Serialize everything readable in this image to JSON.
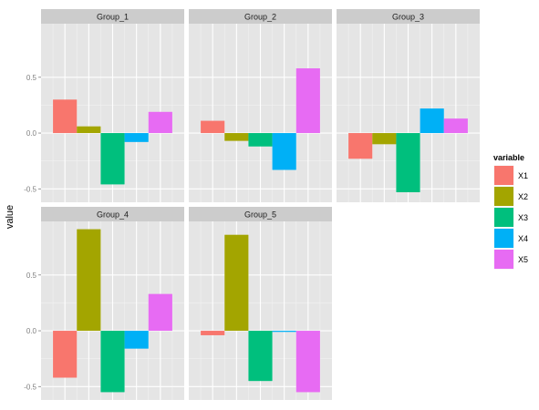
{
  "chart_data": {
    "type": "bar",
    "ylabel": "value",
    "xlabel": "",
    "ylim": [
      -0.62,
      0.98
    ],
    "y_ticks": [
      -0.5,
      0.0,
      0.5
    ],
    "y_tick_labels": [
      "-0.5",
      "0.0",
      "0.5"
    ],
    "grid": true,
    "facet_rows": [
      {
        "ylim": [
          -0.62,
          0.98
        ],
        "y_tick_labels": [
          "-0.5",
          "0.0",
          "0.5"
        ]
      },
      {
        "ylim": [
          -0.62,
          0.98
        ],
        "y_tick_labels": [
          "-0.5",
          "0.0",
          "0.5"
        ]
      }
    ],
    "categories": [
      "X1",
      "X2",
      "X3",
      "X4",
      "X5"
    ],
    "legend": {
      "title": "variable",
      "position": "right",
      "items": [
        {
          "label": "X1",
          "color": "#F8766D"
        },
        {
          "label": "X2",
          "color": "#A3A500"
        },
        {
          "label": "X3",
          "color": "#00BF7D"
        },
        {
          "label": "X4",
          "color": "#00B0F6"
        },
        {
          "label": "X5",
          "color": "#E76BF3"
        }
      ]
    },
    "facets": [
      {
        "title": "Group_1",
        "values": [
          0.3,
          0.06,
          -0.46,
          -0.08,
          0.19
        ]
      },
      {
        "title": "Group_2",
        "values": [
          0.11,
          -0.07,
          -0.12,
          -0.33,
          0.58
        ]
      },
      {
        "title": "Group_3",
        "values": [
          -0.23,
          -0.1,
          -0.53,
          0.22,
          0.13
        ]
      },
      {
        "title": "Group_4",
        "values": [
          -0.42,
          0.91,
          -0.55,
          -0.16,
          0.33
        ]
      },
      {
        "title": "Group_5",
        "values": [
          -0.04,
          0.86,
          -0.45,
          -0.01,
          -0.55
        ]
      }
    ]
  },
  "colors": {
    "panel_bg": "#E5E5E5",
    "strip_bg": "#CCCCCC",
    "grid_major": "#FFFFFF",
    "grid_minor": "#F2F2F2",
    "axis_text": "#7F7F7F"
  }
}
